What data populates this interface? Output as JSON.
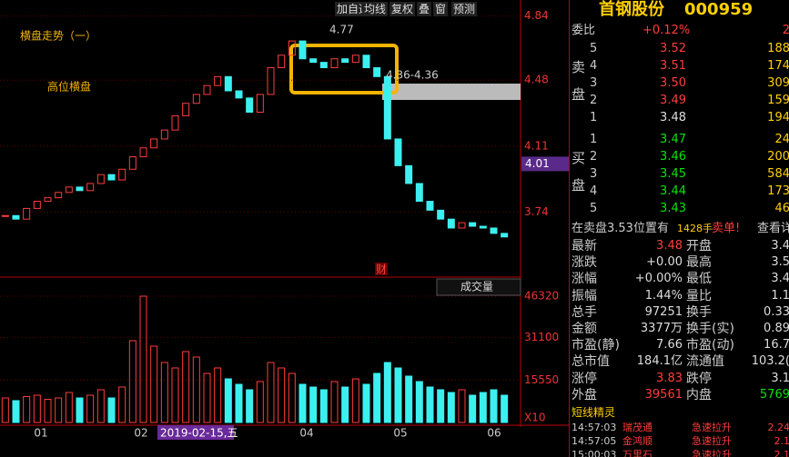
{
  "toolbar": [
    "加自选",
    "均线",
    "复权",
    "叠",
    "窗",
    "预测"
  ],
  "chart_data": {
    "type": "candlestick",
    "annotations": {
      "title": "横盘走势（一）",
      "subtitle": "高位横盘",
      "high_mark": "4.77",
      "range_mark": "4.36-4.36",
      "finance_flag": "财",
      "volume_label": "成交量",
      "date_box": "2019-02-15,五",
      "volume_unit": "X10"
    },
    "ylim": [
      3.4,
      4.93
    ],
    "yticks": [
      4.84,
      4.48,
      4.11,
      3.74
    ],
    "current_price": 4.01,
    "x_labels": [
      "01",
      "02",
      "04",
      "05",
      "06"
    ],
    "values": [
      3.72,
      3.7,
      3.76,
      3.8,
      3.82,
      3.85,
      3.88,
      3.86,
      3.9,
      3.95,
      3.92,
      3.98,
      4.05,
      4.1,
      4.15,
      4.2,
      4.28,
      4.35,
      4.4,
      4.45,
      4.5,
      4.42,
      4.38,
      4.3,
      4.4,
      4.55,
      4.62,
      4.7,
      4.6,
      4.58,
      4.55,
      4.6,
      4.58,
      4.62,
      4.55,
      4.5,
      4.15,
      4.0,
      3.9,
      3.8,
      3.75,
      3.7,
      3.65,
      3.68,
      3.66,
      3.65,
      3.62,
      3.6
    ],
    "volume": [
      9000,
      8000,
      9500,
      10000,
      8500,
      9000,
      11000,
      9000,
      10000,
      12000,
      9000,
      13000,
      30000,
      46320,
      28000,
      22000,
      20000,
      26000,
      24000,
      18000,
      20000,
      16000,
      14000,
      12000,
      15000,
      22000,
      20000,
      18000,
      14000,
      13000,
      12000,
      15000,
      13000,
      16000,
      14000,
      18000,
      22000,
      20000,
      17000,
      15000,
      13000,
      12000,
      11000,
      12000,
      10000,
      11000,
      12000,
      10000
    ],
    "volume_ylim": [
      0,
      46320
    ],
    "volume_yticks": [
      46320,
      31100,
      15550
    ]
  },
  "quote": {
    "name": "首钢股份",
    "code": "000959",
    "ratio_label": "委比",
    "ratio": "+0.12%",
    "ratio_diff": "2",
    "sell_label": "卖盘",
    "buy_label": "买盘",
    "sell": [
      [
        "5",
        "3.52",
        "188"
      ],
      [
        "4",
        "3.51",
        "174"
      ],
      [
        "3",
        "3.50",
        "309"
      ],
      [
        "2",
        "3.49",
        "159"
      ],
      [
        "1",
        "3.48",
        "194"
      ]
    ],
    "buy": [
      [
        "1",
        "3.47",
        "24"
      ],
      [
        "2",
        "3.46",
        "200"
      ],
      [
        "3",
        "3.45",
        "584"
      ],
      [
        "4",
        "3.44",
        "173"
      ],
      [
        "5",
        "3.43",
        "46"
      ]
    ],
    "notice": [
      "在卖盘3.53位置有",
      "1428手",
      "卖单!",
      "查看详"
    ],
    "stats": [
      [
        "最新",
        "3.48",
        "开盘",
        "3.4"
      ],
      [
        "涨跌",
        "+0.00",
        "最高",
        "3.5"
      ],
      [
        "涨幅",
        "+0.00%",
        "最低",
        "3.4"
      ],
      [
        "振幅",
        "1.44%",
        "量比",
        "1.1"
      ],
      [
        "总手",
        "97251",
        "换手",
        "0.33"
      ],
      [
        "金额",
        "3377万",
        "换手(实)",
        "0.89"
      ],
      [
        "市盈(静)",
        "7.66",
        "市盈(动)",
        "16.7"
      ],
      [
        "总市值",
        "184.1亿",
        "流通值",
        "103.2("
      ],
      [
        "涨停",
        "3.83",
        "跌停",
        "3.1"
      ],
      [
        "外盘",
        "39561",
        "内盘",
        "5769"
      ]
    ],
    "elf_title": "短线精灵",
    "elf": [
      [
        "14:57:03",
        "瑞茂通",
        "急速拉升",
        "2.24"
      ],
      [
        "14:57:05",
        "金鸿顺",
        "急速拉升",
        "2.1"
      ],
      [
        "15:00:03",
        "万里石",
        "急速拉升",
        "2.1"
      ]
    ]
  }
}
